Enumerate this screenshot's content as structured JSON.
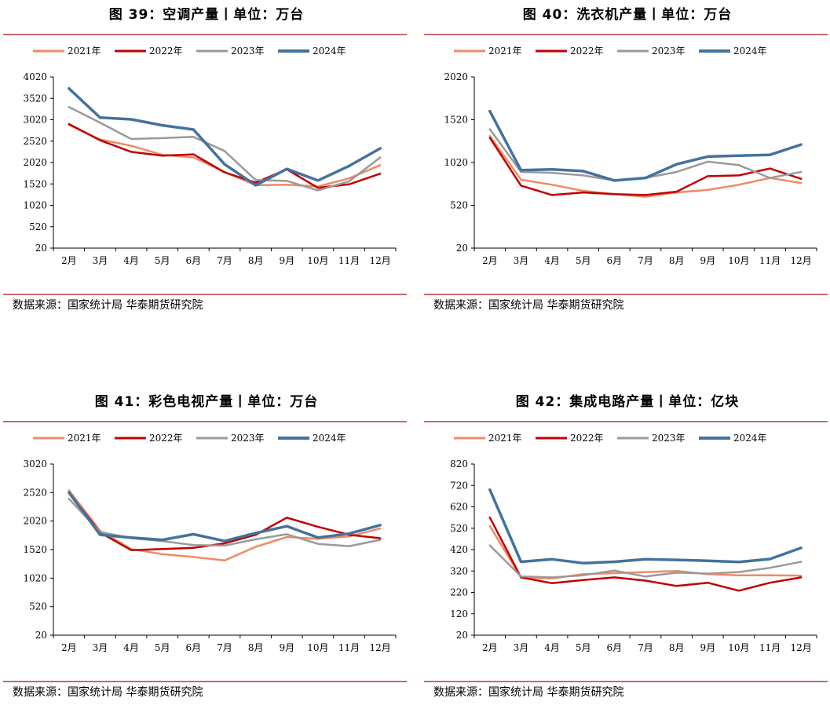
{
  "source_text": "数据来源：国家统计局 华泰期货研究院",
  "chart_data": [
    {
      "type": "line",
      "title": "图 39：空调产量丨单位：万台",
      "categories": [
        "2月",
        "3月",
        "4月",
        "5月",
        "6月",
        "7月",
        "8月",
        "9月",
        "10月",
        "11月",
        "12月"
      ],
      "yticks": [
        "20",
        "520",
        "1020",
        "1520",
        "2020",
        "2520",
        "3020",
        "3520",
        "4020"
      ],
      "ylim": [
        20,
        4020
      ],
      "series": [
        {
          "name": "2021年",
          "color": "#ee8a66",
          "values": [
            2900,
            2560,
            2410,
            2200,
            2140,
            1800,
            1490,
            1500,
            1460,
            1650,
            1960
          ]
        },
        {
          "name": "2022年",
          "color": "#c00000",
          "values": [
            2920,
            2540,
            2270,
            2180,
            2210,
            1790,
            1550,
            1860,
            1430,
            1510,
            1760
          ]
        },
        {
          "name": "2023年",
          "color": "#9a9a9a",
          "values": [
            3320,
            2950,
            2570,
            2590,
            2620,
            2290,
            1610,
            1590,
            1370,
            1580,
            2140
          ]
        },
        {
          "name": "2024年",
          "color": "#44729c",
          "values": [
            3750,
            3070,
            3030,
            2890,
            2790,
            1980,
            1490,
            1870,
            1600,
            1940,
            2350
          ]
        }
      ]
    },
    {
      "type": "line",
      "title": "图 40：洗衣机产量丨单位：万台",
      "categories": [
        "2月",
        "3月",
        "4月",
        "5月",
        "6月",
        "7月",
        "8月",
        "9月",
        "10月",
        "11月",
        "12月"
      ],
      "yticks": [
        "20",
        "520",
        "1020",
        "1520",
        "2020"
      ],
      "ylim": [
        20,
        2020
      ],
      "series": [
        {
          "name": "2021年",
          "color": "#ee8a66",
          "values": [
            1330,
            820,
            760,
            690,
            650,
            620,
            670,
            700,
            760,
            840,
            780
          ]
        },
        {
          "name": "2022年",
          "color": "#c00000",
          "values": [
            1310,
            750,
            640,
            670,
            650,
            640,
            680,
            860,
            870,
            950,
            830
          ]
        },
        {
          "name": "2023年",
          "color": "#9a9a9a",
          "values": [
            1410,
            910,
            900,
            870,
            810,
            840,
            910,
            1030,
            990,
            840,
            910
          ]
        },
        {
          "name": "2024年",
          "color": "#44729c",
          "values": [
            1620,
            930,
            940,
            920,
            810,
            840,
            1000,
            1090,
            1100,
            1110,
            1230
          ]
        }
      ]
    },
    {
      "type": "line",
      "title": "图 41：彩色电视产量丨单位：万台",
      "categories": [
        "2月",
        "3月",
        "4月",
        "5月",
        "6月",
        "7月",
        "8月",
        "9月",
        "10月",
        "11月",
        "12月"
      ],
      "yticks": [
        "20",
        "520",
        "1020",
        "1520",
        "2020",
        "2520",
        "3020"
      ],
      "ylim": [
        20,
        3020
      ],
      "series": [
        {
          "name": "2021年",
          "color": "#ee8a66",
          "values": [
            2560,
            1850,
            1530,
            1440,
            1390,
            1330,
            1570,
            1740,
            1710,
            1750,
            1890
          ]
        },
        {
          "name": "2022年",
          "color": "#c00000",
          "values": [
            2520,
            1820,
            1510,
            1530,
            1550,
            1630,
            1780,
            2080,
            1920,
            1780,
            1720
          ]
        },
        {
          "name": "2023年",
          "color": "#9a9a9a",
          "values": [
            2410,
            1830,
            1720,
            1670,
            1600,
            1590,
            1700,
            1790,
            1620,
            1580,
            1690
          ]
        },
        {
          "name": "2024年",
          "color": "#44729c",
          "values": [
            2520,
            1780,
            1730,
            1690,
            1790,
            1670,
            1810,
            1930,
            1730,
            1800,
            1950
          ]
        }
      ]
    },
    {
      "type": "line",
      "title": "图 42：集成电路产量丨单位：亿块",
      "categories": [
        "2月",
        "3月",
        "4月",
        "5月",
        "6月",
        "7月",
        "8月",
        "9月",
        "10月",
        "11月",
        "12月"
      ],
      "yticks": [
        "20",
        "120",
        "220",
        "320",
        "420",
        "520",
        "620",
        "720",
        "820"
      ],
      "ylim": [
        20,
        820
      ],
      "series": [
        {
          "name": "2021年",
          "color": "#ee8a66",
          "values": [
            530,
            290,
            285,
            305,
            310,
            315,
            320,
            305,
            300,
            300,
            298
          ]
        },
        {
          "name": "2022年",
          "color": "#c00000",
          "values": [
            570,
            290,
            263,
            278,
            290,
            275,
            250,
            265,
            228,
            265,
            290
          ]
        },
        {
          "name": "2023年",
          "color": "#9a9a9a",
          "values": [
            440,
            295,
            290,
            300,
            322,
            294,
            312,
            308,
            315,
            335,
            363
          ]
        },
        {
          "name": "2024年",
          "color": "#44729c",
          "values": [
            700,
            363,
            375,
            357,
            363,
            375,
            372,
            368,
            362,
            376,
            428
          ]
        }
      ]
    }
  ]
}
